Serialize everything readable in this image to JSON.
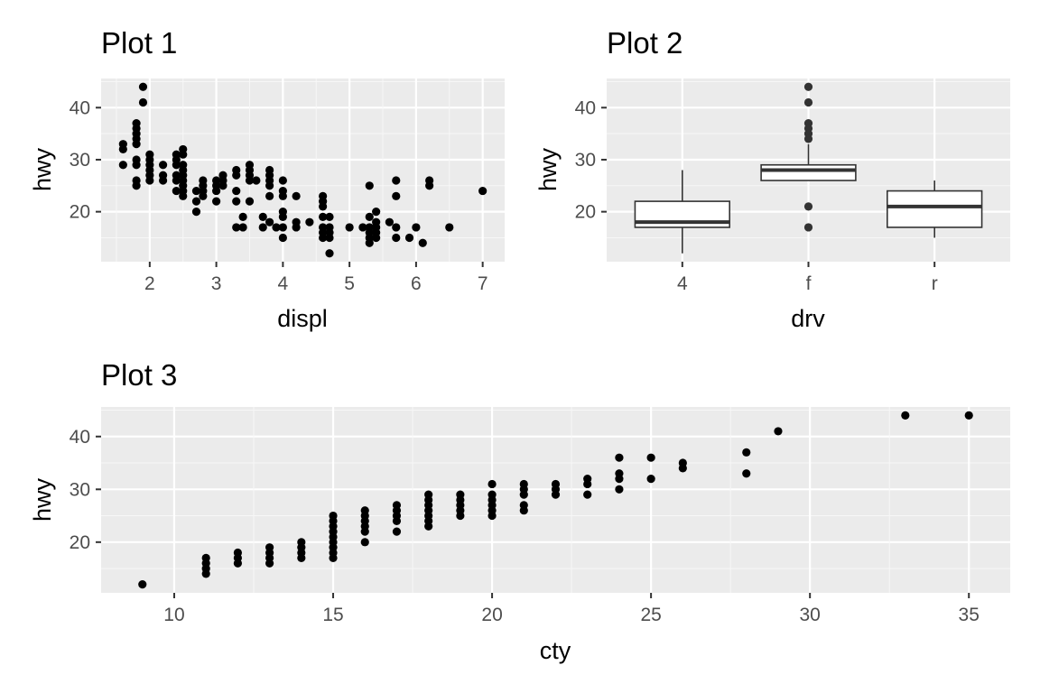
{
  "colors": {
    "panel": "#ebebeb",
    "grid_major": "#ffffff",
    "grid_minor": "#f7f7f7",
    "ink": "#000000",
    "tick": "#4d4d4d",
    "box_line": "#333333"
  },
  "chart_data": [
    {
      "type": "scatter",
      "title": "Plot 1",
      "xlabel": "displ",
      "ylabel": "hwy",
      "xlim": [
        1.27,
        7.33
      ],
      "ylim": [
        10.4,
        45.6
      ],
      "xticks": [
        2,
        3,
        4,
        5,
        6,
        7
      ],
      "yticks": [
        20,
        30,
        40
      ],
      "grid": true,
      "points": [
        [
          1.6,
          33
        ],
        [
          1.6,
          32
        ],
        [
          1.6,
          29
        ],
        [
          1.8,
          37
        ],
        [
          1.8,
          36
        ],
        [
          1.8,
          35
        ],
        [
          1.8,
          34
        ],
        [
          1.8,
          33
        ],
        [
          1.8,
          30
        ],
        [
          1.8,
          29
        ],
        [
          1.8,
          26
        ],
        [
          1.8,
          25
        ],
        [
          1.9,
          44
        ],
        [
          1.9,
          41
        ],
        [
          2.0,
          31
        ],
        [
          2.0,
          30
        ],
        [
          2.0,
          29
        ],
        [
          2.0,
          28
        ],
        [
          2.0,
          27
        ],
        [
          2.0,
          26
        ],
        [
          2.2,
          29
        ],
        [
          2.2,
          27
        ],
        [
          2.2,
          26
        ],
        [
          2.4,
          31
        ],
        [
          2.4,
          30
        ],
        [
          2.4,
          29
        ],
        [
          2.4,
          27
        ],
        [
          2.4,
          26
        ],
        [
          2.4,
          24
        ],
        [
          2.5,
          32
        ],
        [
          2.5,
          31
        ],
        [
          2.5,
          29
        ],
        [
          2.5,
          28
        ],
        [
          2.5,
          27
        ],
        [
          2.5,
          26
        ],
        [
          2.5,
          25
        ],
        [
          2.5,
          24
        ],
        [
          2.5,
          23
        ],
        [
          2.7,
          24
        ],
        [
          2.7,
          22
        ],
        [
          2.7,
          20
        ],
        [
          2.8,
          26
        ],
        [
          2.8,
          25
        ],
        [
          2.8,
          24
        ],
        [
          2.8,
          23
        ],
        [
          3.0,
          26
        ],
        [
          3.0,
          25
        ],
        [
          3.0,
          24
        ],
        [
          3.0,
          22
        ],
        [
          3.1,
          27
        ],
        [
          3.1,
          26
        ],
        [
          3.1,
          25
        ],
        [
          3.3,
          28
        ],
        [
          3.3,
          27
        ],
        [
          3.3,
          24
        ],
        [
          3.3,
          22
        ],
        [
          3.3,
          17
        ],
        [
          3.4,
          19
        ],
        [
          3.4,
          17
        ],
        [
          3.5,
          29
        ],
        [
          3.5,
          28
        ],
        [
          3.5,
          27
        ],
        [
          3.5,
          26
        ],
        [
          3.5,
          22
        ],
        [
          3.6,
          26
        ],
        [
          3.7,
          19
        ],
        [
          3.7,
          17
        ],
        [
          3.8,
          28
        ],
        [
          3.8,
          27
        ],
        [
          3.8,
          26
        ],
        [
          3.8,
          25
        ],
        [
          3.8,
          23
        ],
        [
          3.8,
          18
        ],
        [
          3.9,
          17
        ],
        [
          4.0,
          26
        ],
        [
          4.0,
          24
        ],
        [
          4.0,
          23
        ],
        [
          4.0,
          20
        ],
        [
          4.0,
          19
        ],
        [
          4.0,
          17
        ],
        [
          4.0,
          15
        ],
        [
          4.2,
          23
        ],
        [
          4.2,
          18
        ],
        [
          4.2,
          17
        ],
        [
          4.4,
          18
        ],
        [
          4.6,
          23
        ],
        [
          4.6,
          22
        ],
        [
          4.6,
          21
        ],
        [
          4.6,
          19
        ],
        [
          4.6,
          17
        ],
        [
          4.6,
          16
        ],
        [
          4.6,
          15
        ],
        [
          4.7,
          19
        ],
        [
          4.7,
          17
        ],
        [
          4.7,
          16
        ],
        [
          4.7,
          15
        ],
        [
          4.7,
          12
        ],
        [
          5.0,
          17
        ],
        [
          5.2,
          17
        ],
        [
          5.3,
          25
        ],
        [
          5.3,
          19
        ],
        [
          5.3,
          17
        ],
        [
          5.3,
          16
        ],
        [
          5.3,
          15
        ],
        [
          5.3,
          14
        ],
        [
          5.4,
          20
        ],
        [
          5.4,
          18
        ],
        [
          5.4,
          17
        ],
        [
          5.4,
          16
        ],
        [
          5.4,
          15
        ],
        [
          5.6,
          18
        ],
        [
          5.7,
          26
        ],
        [
          5.7,
          23
        ],
        [
          5.7,
          17
        ],
        [
          5.7,
          15
        ],
        [
          5.9,
          15
        ],
        [
          6.0,
          17
        ],
        [
          6.1,
          14
        ],
        [
          6.2,
          26
        ],
        [
          6.2,
          25
        ],
        [
          6.5,
          17
        ],
        [
          7.0,
          24
        ]
      ]
    },
    {
      "type": "box",
      "title": "Plot 2",
      "xlabel": "drv",
      "ylabel": "hwy",
      "categories": [
        "4",
        "f",
        "r"
      ],
      "ylim": [
        10.4,
        45.6
      ],
      "yticks": [
        20,
        30,
        40
      ],
      "grid": true,
      "boxes": [
        {
          "category": "4",
          "min": 12,
          "q1": 17,
          "median": 18,
          "q3": 22,
          "max": 28,
          "outliers": []
        },
        {
          "category": "f",
          "min": 26,
          "q1": 26,
          "median": 28,
          "q3": 29,
          "max": 33,
          "outliers": [
            44,
            41,
            37,
            36,
            35,
            34,
            21,
            17
          ]
        },
        {
          "category": "r",
          "min": 15,
          "q1": 17,
          "median": 21,
          "q3": 24,
          "max": 26,
          "outliers": []
        }
      ]
    },
    {
      "type": "scatter",
      "title": "Plot 3",
      "xlabel": "cty",
      "ylabel": "hwy",
      "xlim": [
        7.7,
        36.3
      ],
      "ylim": [
        10.4,
        45.6
      ],
      "xticks": [
        10,
        15,
        20,
        25,
        30,
        35
      ],
      "yticks": [
        20,
        30,
        40
      ],
      "grid": true,
      "points": [
        [
          9,
          12
        ],
        [
          11,
          17
        ],
        [
          11,
          16
        ],
        [
          11,
          15
        ],
        [
          11,
          14
        ],
        [
          12,
          18
        ],
        [
          12,
          17
        ],
        [
          12,
          16
        ],
        [
          13,
          19
        ],
        [
          13,
          18
        ],
        [
          13,
          17
        ],
        [
          13,
          16
        ],
        [
          14,
          20
        ],
        [
          14,
          19
        ],
        [
          14,
          18
        ],
        [
          14,
          17
        ],
        [
          15,
          25
        ],
        [
          15,
          24
        ],
        [
          15,
          23
        ],
        [
          15,
          22
        ],
        [
          15,
          21
        ],
        [
          15,
          20
        ],
        [
          15,
          19
        ],
        [
          15,
          18
        ],
        [
          15,
          17
        ],
        [
          16,
          26
        ],
        [
          16,
          25
        ],
        [
          16,
          24
        ],
        [
          16,
          23
        ],
        [
          16,
          22
        ],
        [
          16,
          20
        ],
        [
          17,
          27
        ],
        [
          17,
          26
        ],
        [
          17,
          25
        ],
        [
          17,
          24
        ],
        [
          17,
          22
        ],
        [
          18,
          29
        ],
        [
          18,
          28
        ],
        [
          18,
          27
        ],
        [
          18,
          26
        ],
        [
          18,
          25
        ],
        [
          18,
          24
        ],
        [
          18,
          23
        ],
        [
          19,
          29
        ],
        [
          19,
          28
        ],
        [
          19,
          27
        ],
        [
          19,
          26
        ],
        [
          19,
          25
        ],
        [
          20,
          31
        ],
        [
          20,
          29
        ],
        [
          20,
          28
        ],
        [
          20,
          27
        ],
        [
          20,
          26
        ],
        [
          20,
          25
        ],
        [
          21,
          31
        ],
        [
          21,
          30
        ],
        [
          21,
          29
        ],
        [
          21,
          27
        ],
        [
          21,
          26
        ],
        [
          22,
          31
        ],
        [
          22,
          30
        ],
        [
          22,
          29
        ],
        [
          23,
          32
        ],
        [
          23,
          31
        ],
        [
          23,
          29
        ],
        [
          24,
          36
        ],
        [
          24,
          33
        ],
        [
          24,
          32
        ],
        [
          24,
          30
        ],
        [
          25,
          36
        ],
        [
          25,
          32
        ],
        [
          26,
          35
        ],
        [
          26,
          34
        ],
        [
          28,
          37
        ],
        [
          28,
          33
        ],
        [
          29,
          41
        ],
        [
          33,
          44
        ],
        [
          35,
          44
        ]
      ]
    }
  ]
}
